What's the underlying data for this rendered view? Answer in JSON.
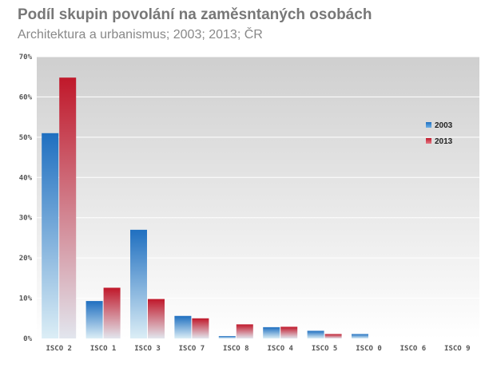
{
  "chart_data": {
    "type": "bar",
    "title": "Podíl skupin povolání na zaměsntaných osobách",
    "subtitle": "Architektura a urbanismus;  2003; 2013; ČR",
    "xlabel": "",
    "ylabel": "",
    "categories": [
      "ISCO 2",
      "ISCO 1",
      "ISCO 3",
      "ISCO 7",
      "ISCO 8",
      "ISCO 4",
      "ISCO 5",
      "ISCO 0",
      "ISCO 6",
      "ISCO 9"
    ],
    "series": [
      {
        "name": "2003",
        "values": [
          51.0,
          9.3,
          27.0,
          5.6,
          0.6,
          2.8,
          1.9,
          1.1,
          0,
          0
        ],
        "color": "#1f6fc0"
      },
      {
        "name": "2013",
        "values": [
          64.8,
          12.6,
          9.8,
          5.0,
          3.5,
          2.9,
          1.1,
          0,
          0,
          0
        ],
        "color": "#c0182a"
      }
    ],
    "ylim": [
      0,
      70
    ],
    "yticks": [
      "0%",
      "10%",
      "20%",
      "30%",
      "40%",
      "50%",
      "60%",
      "70%"
    ],
    "grid": true,
    "legend_position": "right"
  }
}
